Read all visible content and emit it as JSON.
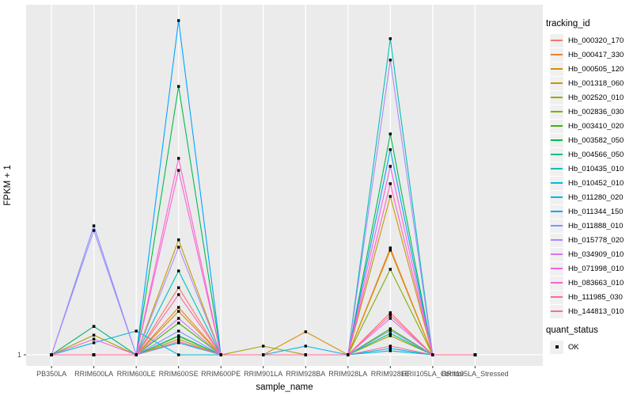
{
  "figure": {
    "background": "#FFFFFF",
    "panel_background": "#EBEBEB",
    "gridline_color": "#FFFFFF",
    "tick_color": "#333333",
    "tick_label_color": "#4D4D4D",
    "point_color": "#000000"
  },
  "chart_data": {
    "type": "line",
    "title": "",
    "xlabel": "sample_name",
    "ylabel": "FPKM + 1",
    "y_tick_labels": [
      "1"
    ],
    "y_scale": "log-like axis; only the y=1 baseline is labeled; series values below are fractions of full plot height above the y=1 baseline (1.0 = tallest peak)",
    "grid": "white major gridlines on grey panel",
    "legend_position": "right",
    "marker": "small black square (quant_status OK)",
    "categories": [
      "PB350LA",
      "RRIM600LA",
      "RRIM600LE",
      "RRIM600SE",
      "RRIM600PE",
      "RRIM901LA",
      "RRIM928BA",
      "RRIM928LA",
      "RRIM928LE",
      "RRII105LA_Control",
      "RRII105LA_Stressed"
    ],
    "series": [
      {
        "name": "Hb_000320_170",
        "color": "#F8766D",
        "values": [
          0,
          0,
          0,
          0.201,
          0,
          0,
          0,
          0,
          0.126,
          0,
          0
        ]
      },
      {
        "name": "Hb_000417_330",
        "color": "#EA8331",
        "values": [
          0,
          0.085,
          0,
          0.142,
          0,
          0,
          0,
          0,
          0.32,
          0,
          0
        ]
      },
      {
        "name": "Hb_000505_120",
        "color": "#D89000",
        "values": [
          0,
          0,
          0,
          0.13,
          0,
          0,
          0.069,
          0,
          0.313,
          0,
          0
        ]
      },
      {
        "name": "Hb_001318_060",
        "color": "#C09B00",
        "values": [
          0,
          0,
          0,
          0.344,
          0,
          0,
          0,
          0,
          0.474,
          0,
          0
        ]
      },
      {
        "name": "Hb_002520_010",
        "color": "#A3A500",
        "values": [
          0,
          0.059,
          0,
          0.047,
          0,
          0.026,
          0,
          0,
          0.057,
          0,
          0
        ]
      },
      {
        "name": "Hb_002836_030",
        "color": "#7CAE00",
        "values": [
          0,
          0,
          0,
          0.055,
          0,
          0,
          0,
          0,
          0.256,
          0,
          0
        ]
      },
      {
        "name": "Hb_003410_020",
        "color": "#39B600",
        "values": [
          0,
          0,
          0,
          0.095,
          0,
          0,
          0,
          0,
          0.078,
          0,
          0
        ]
      },
      {
        "name": "Hb_003582_050",
        "color": "#00BB4E",
        "values": [
          0,
          0,
          0,
          0.803,
          0,
          0,
          0,
          0,
          0.661,
          0,
          0
        ]
      },
      {
        "name": "Hb_004566_050",
        "color": "#00C087",
        "values": [
          0,
          0.085,
          0,
          0.057,
          0,
          0,
          0,
          0,
          0.064,
          0,
          0
        ]
      },
      {
        "name": "Hb_010435_010",
        "color": "#00C0B8",
        "values": [
          0,
          0,
          0,
          0.251,
          0,
          0,
          0,
          0,
          0.946,
          0,
          0
        ]
      },
      {
        "name": "Hb_010452_010",
        "color": "#00BCD8",
        "values": [
          0,
          0.036,
          0.071,
          0,
          0,
          0,
          0,
          0,
          0.012,
          0,
          0
        ]
      },
      {
        "name": "Hb_011280_020",
        "color": "#00B4EF",
        "values": [
          0,
          0,
          0,
          0.036,
          0,
          0,
          0.026,
          0,
          0.019,
          0,
          0
        ]
      },
      {
        "name": "Hb_011344_150",
        "color": "#00A5FF",
        "values": [
          0,
          0,
          0,
          1.0,
          0,
          0,
          0,
          0,
          0.614,
          0,
          0
        ]
      },
      {
        "name": "Hb_011888_010",
        "color": "#7997FF",
        "values": [
          0,
          0.386,
          0,
          0.071,
          0,
          0,
          0,
          0,
          0.073,
          0,
          0
        ]
      },
      {
        "name": "Hb_015778_020",
        "color": "#AC88FF",
        "values": [
          0,
          0.372,
          0,
          0.322,
          0,
          0,
          0,
          0,
          0.882,
          0,
          0
        ]
      },
      {
        "name": "Hb_034909_010",
        "color": "#DC71FA",
        "values": [
          0,
          0,
          0,
          0.109,
          0,
          0,
          0,
          0,
          0.109,
          0,
          0
        ]
      },
      {
        "name": "Hb_071998_010",
        "color": "#F763E0",
        "values": [
          0,
          0.047,
          0,
          0.552,
          0,
          0,
          0,
          0,
          0.564,
          0,
          0
        ]
      },
      {
        "name": "Hb_083663_010",
        "color": "#FF61C9",
        "values": [
          0,
          0,
          0,
          0.588,
          0,
          0,
          0,
          0,
          0.512,
          0,
          0
        ]
      },
      {
        "name": "Hb_111985_030",
        "color": "#FF689F",
        "values": [
          0,
          0,
          0,
          0.18,
          0,
          0,
          0,
          0,
          0.118,
          0,
          0
        ]
      },
      {
        "name": "Hb_144813_010",
        "color": "#FF6A98",
        "values": [
          0,
          0,
          0,
          0.04,
          0,
          0,
          0,
          0,
          0.026,
          0,
          0
        ]
      }
    ],
    "legend": {
      "tracking_title": "tracking_id",
      "quant_title": "quant_status",
      "quant_items": [
        {
          "label": "OK"
        }
      ]
    }
  }
}
